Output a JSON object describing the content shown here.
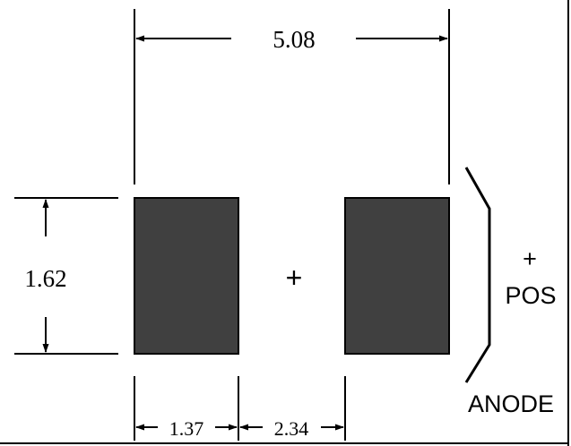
{
  "diagram": {
    "dimensions": {
      "overall_width": "5.08",
      "pad_height": "1.62",
      "pad_width": "1.37",
      "pad_gap": "2.34"
    },
    "center_mark": "+",
    "polarity": {
      "plus": "+",
      "pos": "POS",
      "anode": "ANODE"
    },
    "colors": {
      "pad_fill": "#404040",
      "line": "#000000",
      "background": "#ffffff"
    }
  }
}
